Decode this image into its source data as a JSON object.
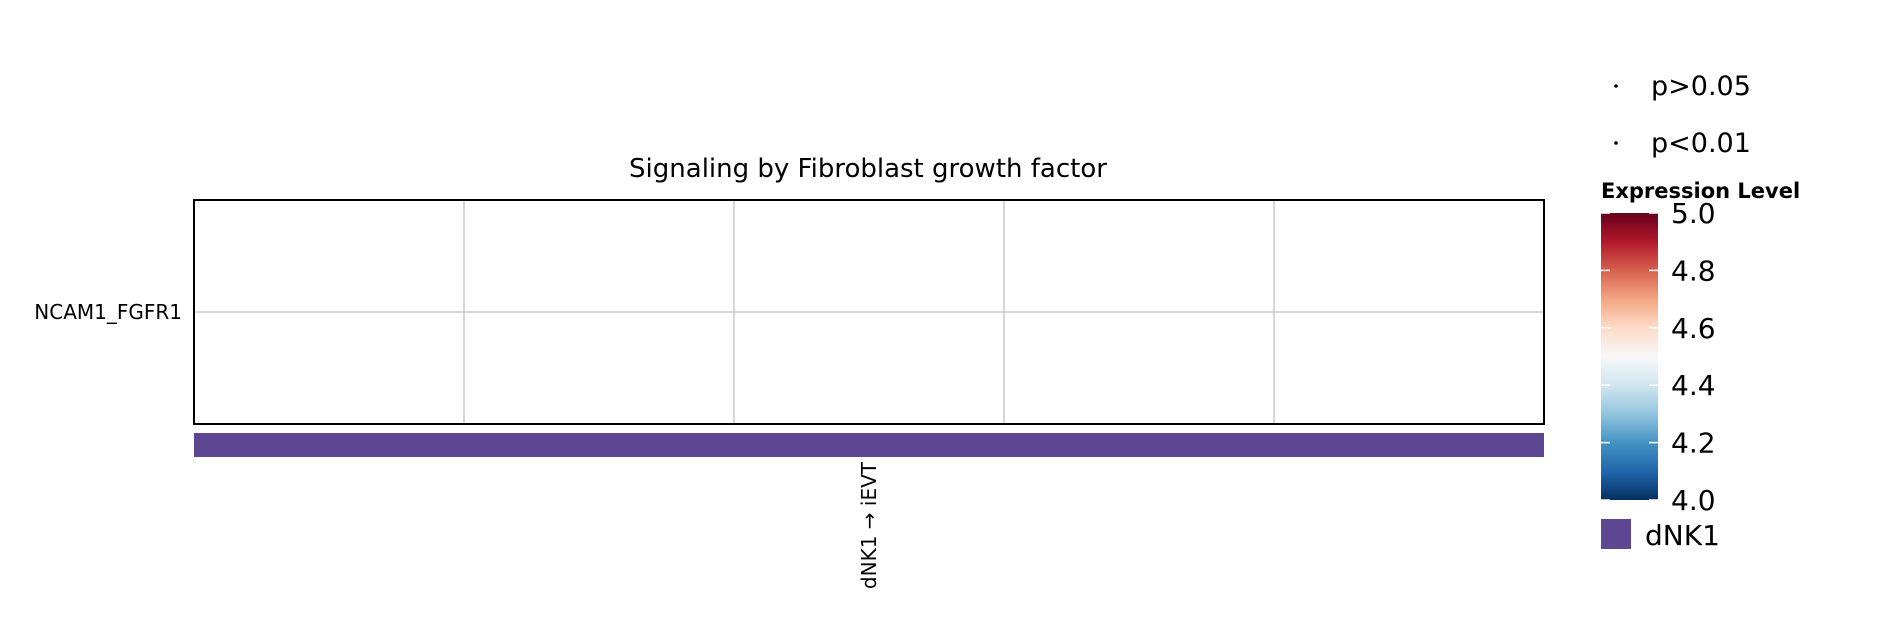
{
  "chart_data": {
    "type": "heatmap",
    "title": "Signaling by Fibroblast growth factor",
    "y_categories": [
      "NCAM1_FGFR1"
    ],
    "x_categories": [
      "dNK1 → iEVT"
    ],
    "values": [],
    "grid": true,
    "pvalue_legend": {
      "entries": [
        {
          "label": "p>0.05"
        },
        {
          "label": "p<0.01"
        }
      ]
    },
    "colorbar": {
      "title": "Expression Level",
      "range": [
        4.0,
        5.0
      ],
      "ticks": [
        "5.0",
        "4.8",
        "4.6",
        "4.4",
        "4.2",
        "4.0"
      ],
      "colormap": [
        "#053061",
        "#2166ac",
        "#4393c3",
        "#92c5de",
        "#d1e5f0",
        "#f7f7f7",
        "#fddbc7",
        "#f4a582",
        "#d6604d",
        "#b2182b",
        "#67001f"
      ]
    },
    "group_legend": {
      "entries": [
        {
          "label": "dNK1",
          "color": "#5e4792"
        }
      ]
    }
  }
}
